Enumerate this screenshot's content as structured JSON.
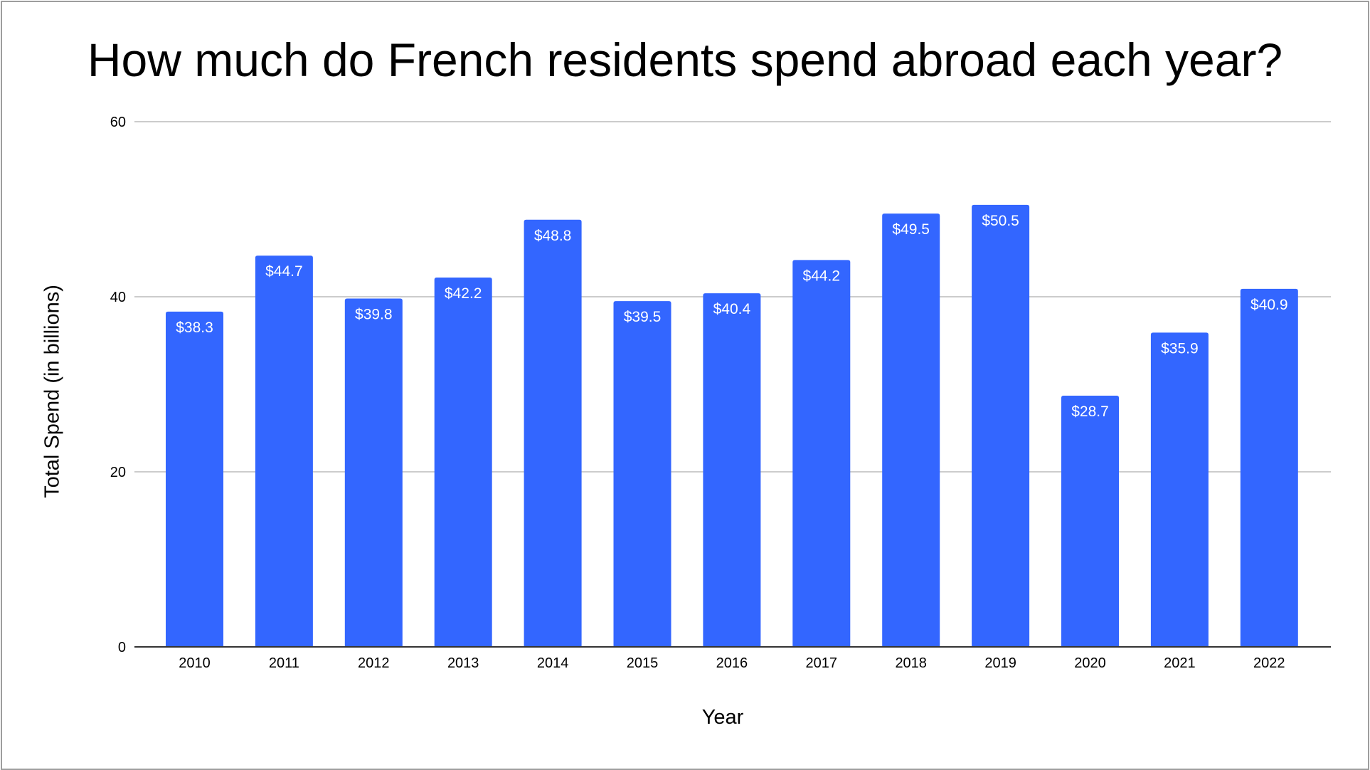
{
  "chart_data": {
    "type": "bar",
    "title": "How much do French residents spend abroad each year?",
    "xlabel": "Year",
    "ylabel": "Total Spend (in billions)",
    "categories": [
      "2010",
      "2011",
      "2012",
      "2013",
      "2014",
      "2015",
      "2016",
      "2017",
      "2018",
      "2019",
      "2020",
      "2021",
      "2022"
    ],
    "values": [
      38.3,
      44.7,
      39.8,
      42.2,
      48.8,
      39.5,
      40.4,
      44.2,
      49.5,
      50.5,
      28.7,
      35.9,
      40.9
    ],
    "data_labels": [
      "$38.3",
      "$44.7",
      "$39.8",
      "$42.2",
      "$48.8",
      "$39.5",
      "$40.4",
      "$44.2",
      "$49.5",
      "$50.5",
      "$28.7",
      "$35.9",
      "$40.9"
    ],
    "ylim": [
      0,
      60
    ],
    "yticks": [
      0,
      20,
      40,
      60
    ],
    "grid": true,
    "legend": "none",
    "bar_color": "#3366ff"
  }
}
